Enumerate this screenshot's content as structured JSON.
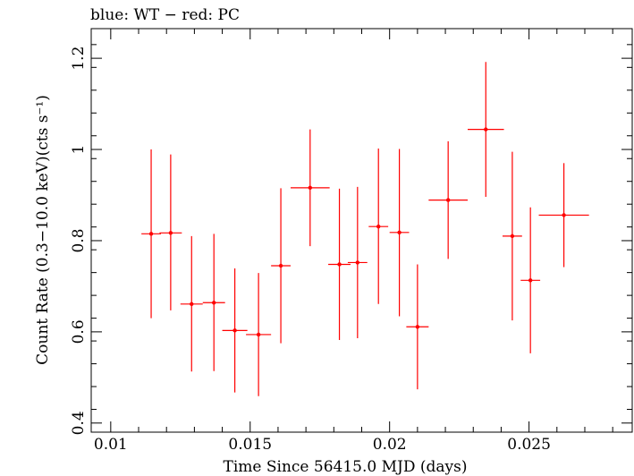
{
  "chart_data": {
    "type": "scatter",
    "title": "blue: WT − red: PC",
    "xlabel": "Time Since 56415.0 MJD (days)",
    "ylabel": "Count Rate (0.3−10.0 keV)(cts s⁻¹)",
    "xlim": [
      0.0093,
      0.0287
    ],
    "ylim": [
      0.38,
      1.265
    ],
    "xticks": [
      0.01,
      0.015,
      0.02,
      0.025
    ],
    "xtick_labels": [
      "0.01",
      "0.015",
      "0.02",
      "0.025"
    ],
    "yticks": [
      0.4,
      0.6,
      0.8,
      1.0,
      1.2
    ],
    "ytick_labels": [
      "0.4",
      "0.6",
      "0.8",
      "1",
      "1.2"
    ],
    "grid": false,
    "series": [
      {
        "color": "#ff0000",
        "points": [
          {
            "x": 0.01145,
            "y": 0.815,
            "xerr": 0.00035,
            "yerr_lo": 0.185,
            "yerr_hi": 0.185
          },
          {
            "x": 0.01215,
            "y": 0.817,
            "xerr": 0.0004,
            "yerr_lo": 0.17,
            "yerr_hi": 0.172
          },
          {
            "x": 0.0129,
            "y": 0.661,
            "xerr": 0.0004,
            "yerr_lo": 0.148,
            "yerr_hi": 0.149
          },
          {
            "x": 0.0137,
            "y": 0.664,
            "xerr": 0.0004,
            "yerr_lo": 0.15,
            "yerr_hi": 0.151
          },
          {
            "x": 0.01445,
            "y": 0.603,
            "xerr": 0.00045,
            "yerr_lo": 0.136,
            "yerr_hi": 0.136
          },
          {
            "x": 0.0153,
            "y": 0.594,
            "xerr": 0.00045,
            "yerr_lo": 0.135,
            "yerr_hi": 0.135
          },
          {
            "x": 0.0161,
            "y": 0.745,
            "xerr": 0.00035,
            "yerr_lo": 0.17,
            "yerr_hi": 0.17
          },
          {
            "x": 0.01715,
            "y": 0.916,
            "xerr": 0.0007,
            "yerr_lo": 0.128,
            "yerr_hi": 0.128
          },
          {
            "x": 0.0182,
            "y": 0.748,
            "xerr": 0.0004,
            "yerr_lo": 0.166,
            "yerr_hi": 0.166
          },
          {
            "x": 0.01885,
            "y": 0.752,
            "xerr": 0.00035,
            "yerr_lo": 0.166,
            "yerr_hi": 0.166
          },
          {
            "x": 0.0196,
            "y": 0.831,
            "xerr": 0.00035,
            "yerr_lo": 0.17,
            "yerr_hi": 0.171
          },
          {
            "x": 0.02035,
            "y": 0.818,
            "xerr": 0.00035,
            "yerr_lo": 0.184,
            "yerr_hi": 0.183
          },
          {
            "x": 0.021,
            "y": 0.611,
            "xerr": 0.0004,
            "yerr_lo": 0.137,
            "yerr_hi": 0.137
          },
          {
            "x": 0.0221,
            "y": 0.889,
            "xerr": 0.0007,
            "yerr_lo": 0.129,
            "yerr_hi": 0.129
          },
          {
            "x": 0.02345,
            "y": 1.044,
            "xerr": 0.00065,
            "yerr_lo": 0.148,
            "yerr_hi": 0.148
          },
          {
            "x": 0.0244,
            "y": 0.81,
            "xerr": 0.00035,
            "yerr_lo": 0.185,
            "yerr_hi": 0.185
          },
          {
            "x": 0.02505,
            "y": 0.713,
            "xerr": 0.00035,
            "yerr_lo": 0.16,
            "yerr_hi": 0.16
          },
          {
            "x": 0.02625,
            "y": 0.856,
            "xerr": 0.0009,
            "yerr_lo": 0.114,
            "yerr_hi": 0.114
          }
        ]
      }
    ]
  }
}
